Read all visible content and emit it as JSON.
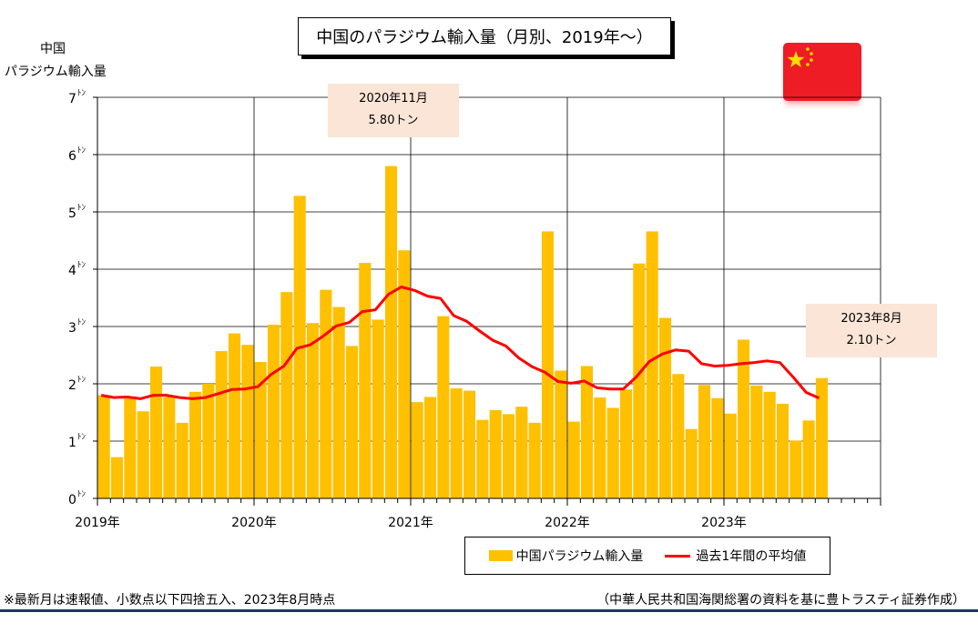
{
  "title": "中国のパラジウム輸入量（月別、2019年～）",
  "y_axis_label_line1": "中国",
  "y_axis_label_line2": "パラジウム輸入量",
  "callouts": {
    "peak_line1": "2020年11月",
    "peak_line2": "5.80トン",
    "latest_line1": "2023年8月",
    "latest_line2": "2.10トン"
  },
  "legend": {
    "bar_label": "中国パラジウム輸入量",
    "line_label": "過去1年間の平均値"
  },
  "footnote": "※最新月は速報値、小数点以下四捨五入、2023年8月時点",
  "source": "（中華人民共和国海関総署の資料を基に豊トラスティ証券作成）",
  "colors": {
    "bar": "#ffc000",
    "line": "#ff0000",
    "flag": "#ee1c25",
    "callout_bg": "#fbe5d6"
  },
  "chart_data": {
    "type": "bar",
    "ylim": [
      0,
      7
    ],
    "y_ticks": [
      "0",
      "1",
      "2",
      "3",
      "4",
      "5",
      "6",
      "7"
    ],
    "y_unit": "ﾄﾝ",
    "x_tick_labels": [
      "2019年",
      "2020年",
      "2021年",
      "2022年",
      "2023年"
    ],
    "total_months": 60,
    "series": [
      {
        "name": "中国パラジウム輸入量",
        "kind": "bar",
        "values": [
          1.8,
          0.72,
          1.78,
          1.52,
          2.3,
          1.77,
          1.32,
          1.86,
          2.0,
          2.57,
          2.88,
          2.68,
          2.38,
          3.03,
          3.6,
          5.28,
          3.06,
          3.64,
          3.34,
          2.66,
          4.11,
          3.12,
          5.8,
          4.33,
          1.68,
          1.77,
          3.18,
          1.92,
          1.88,
          1.37,
          1.54,
          1.47,
          1.6,
          1.32,
          4.66,
          2.23,
          1.34,
          2.31,
          1.76,
          1.58,
          1.9,
          4.1,
          4.66,
          3.15,
          2.17,
          1.21,
          1.98,
          1.75,
          1.48,
          2.77,
          1.97,
          1.86,
          1.65,
          1.01,
          1.36,
          2.1
        ]
      },
      {
        "name": "過去1年間の平均値",
        "kind": "line",
        "values": [
          1.8,
          1.76,
          1.77,
          1.74,
          1.8,
          1.8,
          1.76,
          1.74,
          1.76,
          1.83,
          1.9,
          1.91,
          1.95,
          2.16,
          2.31,
          2.62,
          2.68,
          2.83,
          3.01,
          3.07,
          3.26,
          3.29,
          3.56,
          3.69,
          3.63,
          3.53,
          3.49,
          3.19,
          3.09,
          2.92,
          2.76,
          2.66,
          2.45,
          2.3,
          2.2,
          2.04,
          2.01,
          2.05,
          1.93,
          1.91,
          1.91,
          2.12,
          2.39,
          2.52,
          2.59,
          2.57,
          2.35,
          2.31,
          2.32,
          2.35,
          2.37,
          2.4,
          2.37,
          2.12,
          1.85,
          1.75
        ]
      }
    ],
    "grid": true,
    "legend_position": "bottom-right"
  }
}
